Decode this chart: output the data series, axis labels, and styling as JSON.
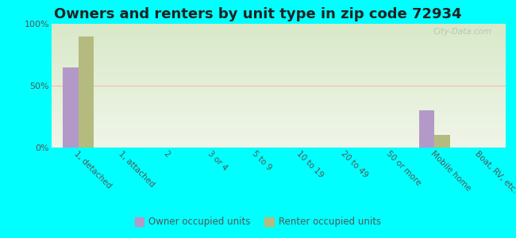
{
  "title": "Owners and renters by unit type in zip code 72934",
  "categories": [
    "1, detached",
    "1, attached",
    "2",
    "3 or 4",
    "5 to 9",
    "10 to 19",
    "20 to 49",
    "50 or more",
    "Mobile home",
    "Boat, RV, etc."
  ],
  "owner_values": [
    65,
    0,
    0,
    0,
    0,
    0,
    0,
    0,
    30,
    0
  ],
  "renter_values": [
    90,
    0,
    0,
    0,
    0,
    0,
    0,
    0,
    10,
    0
  ],
  "owner_color": "#b399c8",
  "renter_color": "#b5bb7e",
  "background_color": "#00ffff",
  "plot_bg_top_color": "#d8e8c8",
  "plot_bg_bottom_color": "#f0f5e8",
  "ylim": [
    0,
    100
  ],
  "yticks": [
    0,
    50,
    100
  ],
  "ytick_labels": [
    "0%",
    "50%",
    "100%"
  ],
  "bar_width": 0.35,
  "title_fontsize": 13,
  "watermark": "City-Data.com",
  "legend_owner": "Owner occupied units",
  "legend_renter": "Renter occupied units"
}
